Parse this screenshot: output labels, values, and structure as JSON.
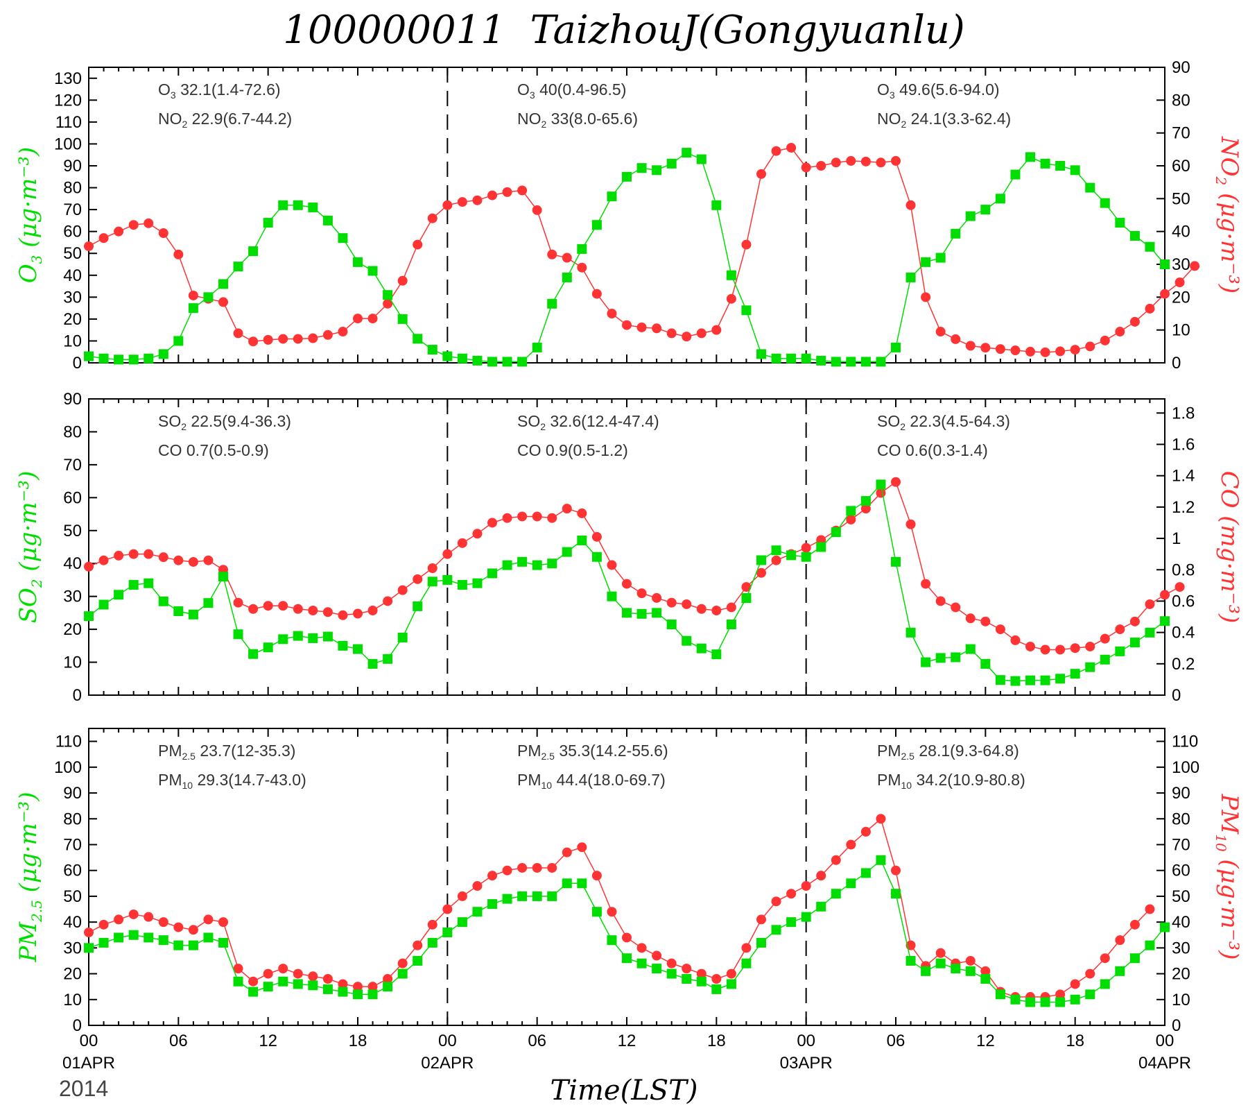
{
  "title": "100000011  TaizhouJ(Gongyuanlu)",
  "year": "2014",
  "xlabel": "Time(LST)",
  "colors": {
    "left_series": "#00dd00",
    "right_series": "#ff3333",
    "axes": "#000000"
  },
  "x_axis": {
    "range": [
      0,
      72
    ],
    "ticks": [
      {
        "x": 0,
        "label": "00",
        "date": "01APR"
      },
      {
        "x": 6,
        "label": "06",
        "date": ""
      },
      {
        "x": 12,
        "label": "12",
        "date": ""
      },
      {
        "x": 18,
        "label": "18",
        "date": ""
      },
      {
        "x": 24,
        "label": "00",
        "date": "02APR"
      },
      {
        "x": 30,
        "label": "06",
        "date": ""
      },
      {
        "x": 36,
        "label": "12",
        "date": ""
      },
      {
        "x": 42,
        "label": "18",
        "date": ""
      },
      {
        "x": 48,
        "label": "00",
        "date": "03APR"
      },
      {
        "x": 54,
        "label": "06",
        "date": ""
      },
      {
        "x": 60,
        "label": "12",
        "date": ""
      },
      {
        "x": 66,
        "label": "18",
        "date": ""
      },
      {
        "x": 72,
        "label": "00",
        "date": "04APR"
      }
    ],
    "day_dividers": [
      24,
      48
    ]
  },
  "chart_data": [
    {
      "type": "line",
      "left_label": {
        "base": "O",
        "sub": "3",
        "unit": "(μg·m⁻³)"
      },
      "right_label": {
        "base": "NO",
        "sub": "2",
        "unit": "(μg·m⁻³)"
      },
      "left_ylim": [
        0,
        135
      ],
      "left_ticks": [
        0,
        10,
        20,
        30,
        40,
        50,
        60,
        70,
        80,
        90,
        100,
        110,
        120,
        130
      ],
      "right_ylim": [
        0,
        90
      ],
      "right_ticks": [
        0,
        10,
        20,
        30,
        40,
        50,
        60,
        70,
        80,
        90
      ],
      "stats": [
        [
          {
            "name": "O",
            "sub": "3",
            "value": "32.1(1.4-72.6)"
          },
          {
            "name": "NO",
            "sub": "2",
            "value": "22.9(6.7-44.2)"
          }
        ],
        [
          {
            "name": "O",
            "sub": "3",
            "value": "40(0.4-96.5)"
          },
          {
            "name": "NO",
            "sub": "2",
            "value": "33(8.0-65.6)"
          }
        ],
        [
          {
            "name": "O",
            "sub": "3",
            "value": "49.6(5.6-94.0)"
          },
          {
            "name": "NO",
            "sub": "2",
            "value": "24.1(3.3-62.4)"
          }
        ]
      ],
      "left_series": {
        "name": "O3",
        "values": [
          3,
          2,
          1.5,
          1.5,
          2,
          4,
          10,
          25,
          30,
          36,
          44,
          51,
          64,
          72,
          72,
          71,
          65,
          57,
          46,
          42,
          31,
          20,
          11,
          6,
          3,
          2,
          1,
          0.5,
          0.5,
          0.5,
          7,
          27,
          39,
          52,
          63,
          76,
          85,
          89,
          88,
          91,
          96,
          93,
          72,
          40,
          24,
          4,
          2,
          2,
          2,
          1,
          0.5,
          0.5,
          0.5,
          0.5,
          7,
          39,
          46,
          48,
          59,
          67,
          70,
          75,
          86,
          94,
          91,
          90,
          88,
          80,
          73,
          64,
          58,
          53,
          45
        ]
      },
      "right_series": {
        "name": "NO2",
        "values": [
          35.5,
          38,
          40,
          42,
          42.5,
          39.5,
          33,
          20.5,
          19.5,
          18.5,
          9,
          6.5,
          7,
          7.3,
          7.3,
          7.5,
          8.5,
          9.5,
          13.5,
          13.5,
          18,
          25,
          36,
          44,
          48,
          49,
          49.5,
          51,
          52,
          52.5,
          46.5,
          33,
          32,
          29,
          21,
          15,
          11.5,
          10.8,
          10.5,
          9,
          8,
          9,
          10,
          19.5,
          36,
          57.5,
          64.5,
          65.5,
          59.5,
          60,
          61,
          61.5,
          61.3,
          61,
          61.5,
          48,
          20,
          9.5,
          7.2,
          5.2,
          4.6,
          4.2,
          3.8,
          3.4,
          3.2,
          3.5,
          4,
          5,
          6.8,
          9.5,
          12.5,
          16.5,
          21,
          24.5,
          29.5
        ]
      }
    },
    {
      "type": "line",
      "left_label": {
        "base": "SO",
        "sub": "2",
        "unit": "(μg·m⁻³)"
      },
      "right_label": {
        "base": "CO",
        "sub": "",
        "unit": "(mg·m⁻³)"
      },
      "left_ylim": [
        0,
        90
      ],
      "left_ticks": [
        0,
        10,
        20,
        30,
        40,
        50,
        60,
        70,
        80,
        90
      ],
      "right_ylim": [
        0,
        1.89
      ],
      "right_ticks": [
        0,
        0.2,
        0.4,
        0.6,
        0.8,
        1,
        1.2,
        1.4,
        1.6,
        1.8
      ],
      "right_tick_labels": [
        "0",
        "0.2",
        "0.4",
        "0.6",
        "0.8",
        "1",
        "1.2",
        "1.4",
        "1.6",
        "1.8"
      ],
      "stats": [
        [
          {
            "name": "SO",
            "sub": "2",
            "value": "22.5(9.4-36.3)"
          },
          {
            "name": "CO",
            "sub": "",
            "value": "0.7(0.5-0.9)"
          }
        ],
        [
          {
            "name": "SO",
            "sub": "2",
            "value": "32.6(12.4-47.4)"
          },
          {
            "name": "CO",
            "sub": "",
            "value": "0.9(0.5-1.2)"
          }
        ],
        [
          {
            "name": "SO",
            "sub": "2",
            "value": "22.3(4.5-64.3)"
          },
          {
            "name": "CO",
            "sub": "",
            "value": "0.6(0.3-1.4)"
          }
        ]
      ],
      "left_series": {
        "name": "SO2",
        "values": [
          24,
          27.5,
          30.5,
          33.5,
          34,
          28.5,
          25.5,
          24.5,
          28,
          36,
          18.5,
          12.5,
          14.5,
          17,
          18,
          17.3,
          17.8,
          15,
          14,
          9.5,
          11,
          17.5,
          27,
          34.5,
          35,
          33.5,
          34,
          37,
          39.5,
          40.5,
          39.5,
          40,
          43.5,
          47,
          42,
          30,
          25,
          24.7,
          25,
          21.5,
          16.5,
          14.2,
          12.4,
          21.5,
          29.5,
          41,
          44,
          42.5,
          42,
          45,
          49.5,
          56,
          59,
          64,
          40.5,
          19,
          10,
          11.3,
          11.5,
          14,
          9.5,
          4.6,
          4.3,
          4.5,
          4.5,
          5,
          6.5,
          8.5,
          10.8,
          13.3,
          16,
          19,
          22.5
        ]
      },
      "right_series": {
        "name": "CO",
        "values": [
          0.82,
          0.86,
          0.89,
          0.9,
          0.9,
          0.88,
          0.86,
          0.85,
          0.86,
          0.8,
          0.59,
          0.55,
          0.57,
          0.57,
          0.55,
          0.54,
          0.53,
          0.51,
          0.52,
          0.54,
          0.6,
          0.67,
          0.74,
          0.81,
          0.9,
          0.97,
          1.03,
          1.1,
          1.13,
          1.14,
          1.14,
          1.13,
          1.19,
          1.16,
          1.01,
          0.83,
          0.71,
          0.65,
          0.62,
          0.59,
          0.58,
          0.55,
          0.54,
          0.56,
          0.69,
          0.78,
          0.86,
          0.9,
          0.94,
          0.99,
          1.05,
          1.12,
          1.19,
          1.29,
          1.36,
          1.09,
          0.71,
          0.6,
          0.56,
          0.49,
          0.47,
          0.42,
          0.35,
          0.31,
          0.29,
          0.29,
          0.3,
          0.31,
          0.36,
          0.42,
          0.47,
          0.58,
          0.64,
          0.69
        ]
      }
    },
    {
      "type": "line",
      "left_label": {
        "base": "PM",
        "sub": "2.5",
        "unit": "(μg·m⁻³)"
      },
      "right_label": {
        "base": "PM",
        "sub": "10",
        "unit": "(μg·m⁻³)"
      },
      "left_ylim": [
        0,
        115
      ],
      "left_ticks": [
        0,
        10,
        20,
        30,
        40,
        50,
        60,
        70,
        80,
        90,
        100,
        110
      ],
      "right_ylim": [
        0,
        115
      ],
      "right_ticks": [
        0,
        10,
        20,
        30,
        40,
        50,
        60,
        70,
        80,
        90,
        100,
        110
      ],
      "stats": [
        [
          {
            "name": "PM",
            "sub": "2.5",
            "value": "23.7(12-35.3)"
          },
          {
            "name": "PM",
            "sub": "10",
            "value": "29.3(14.7-43.0)"
          }
        ],
        [
          {
            "name": "PM",
            "sub": "2.5",
            "value": "35.3(14.2-55.6)"
          },
          {
            "name": "PM",
            "sub": "10",
            "value": "44.4(18.0-69.7)"
          }
        ],
        [
          {
            "name": "PM",
            "sub": "2.5",
            "value": "28.1(9.3-64.8)"
          },
          {
            "name": "PM",
            "sub": "10",
            "value": "34.2(10.9-80.8)"
          }
        ]
      ],
      "left_series": {
        "name": "PM2.5",
        "values": [
          30,
          32,
          34,
          35,
          34,
          33,
          31,
          31,
          34,
          32,
          17,
          13,
          15,
          17,
          16,
          15.5,
          14,
          13,
          12,
          12,
          15,
          20,
          25,
          32,
          36,
          40,
          44,
          47,
          49,
          50,
          50,
          50,
          55,
          55,
          44,
          33,
          26,
          24,
          22,
          20,
          18,
          17,
          14,
          16,
          24,
          32,
          37,
          40,
          42,
          46,
          51,
          55,
          59,
          64,
          51,
          25,
          21,
          24,
          22,
          21,
          18,
          12,
          10,
          9,
          9,
          9,
          10,
          12,
          16,
          21,
          26,
          31,
          38
        ]
      },
      "right_series": {
        "name": "PM10",
        "values": [
          36,
          39,
          41,
          43,
          42,
          40,
          38,
          37,
          41,
          40,
          22,
          17,
          20,
          22,
          20,
          19,
          18,
          16,
          15,
          15,
          18,
          24,
          31,
          39,
          45,
          50,
          54,
          58,
          60,
          61,
          61,
          61,
          67,
          69,
          58,
          44,
          34,
          30,
          27,
          24,
          22,
          20,
          18,
          20,
          30,
          41,
          48,
          51,
          54,
          58,
          64,
          70,
          75,
          80,
          60,
          31,
          23,
          28,
          24,
          25,
          21,
          13,
          11,
          11,
          11,
          12,
          16,
          20,
          26,
          33,
          39,
          45
        ]
      }
    }
  ]
}
